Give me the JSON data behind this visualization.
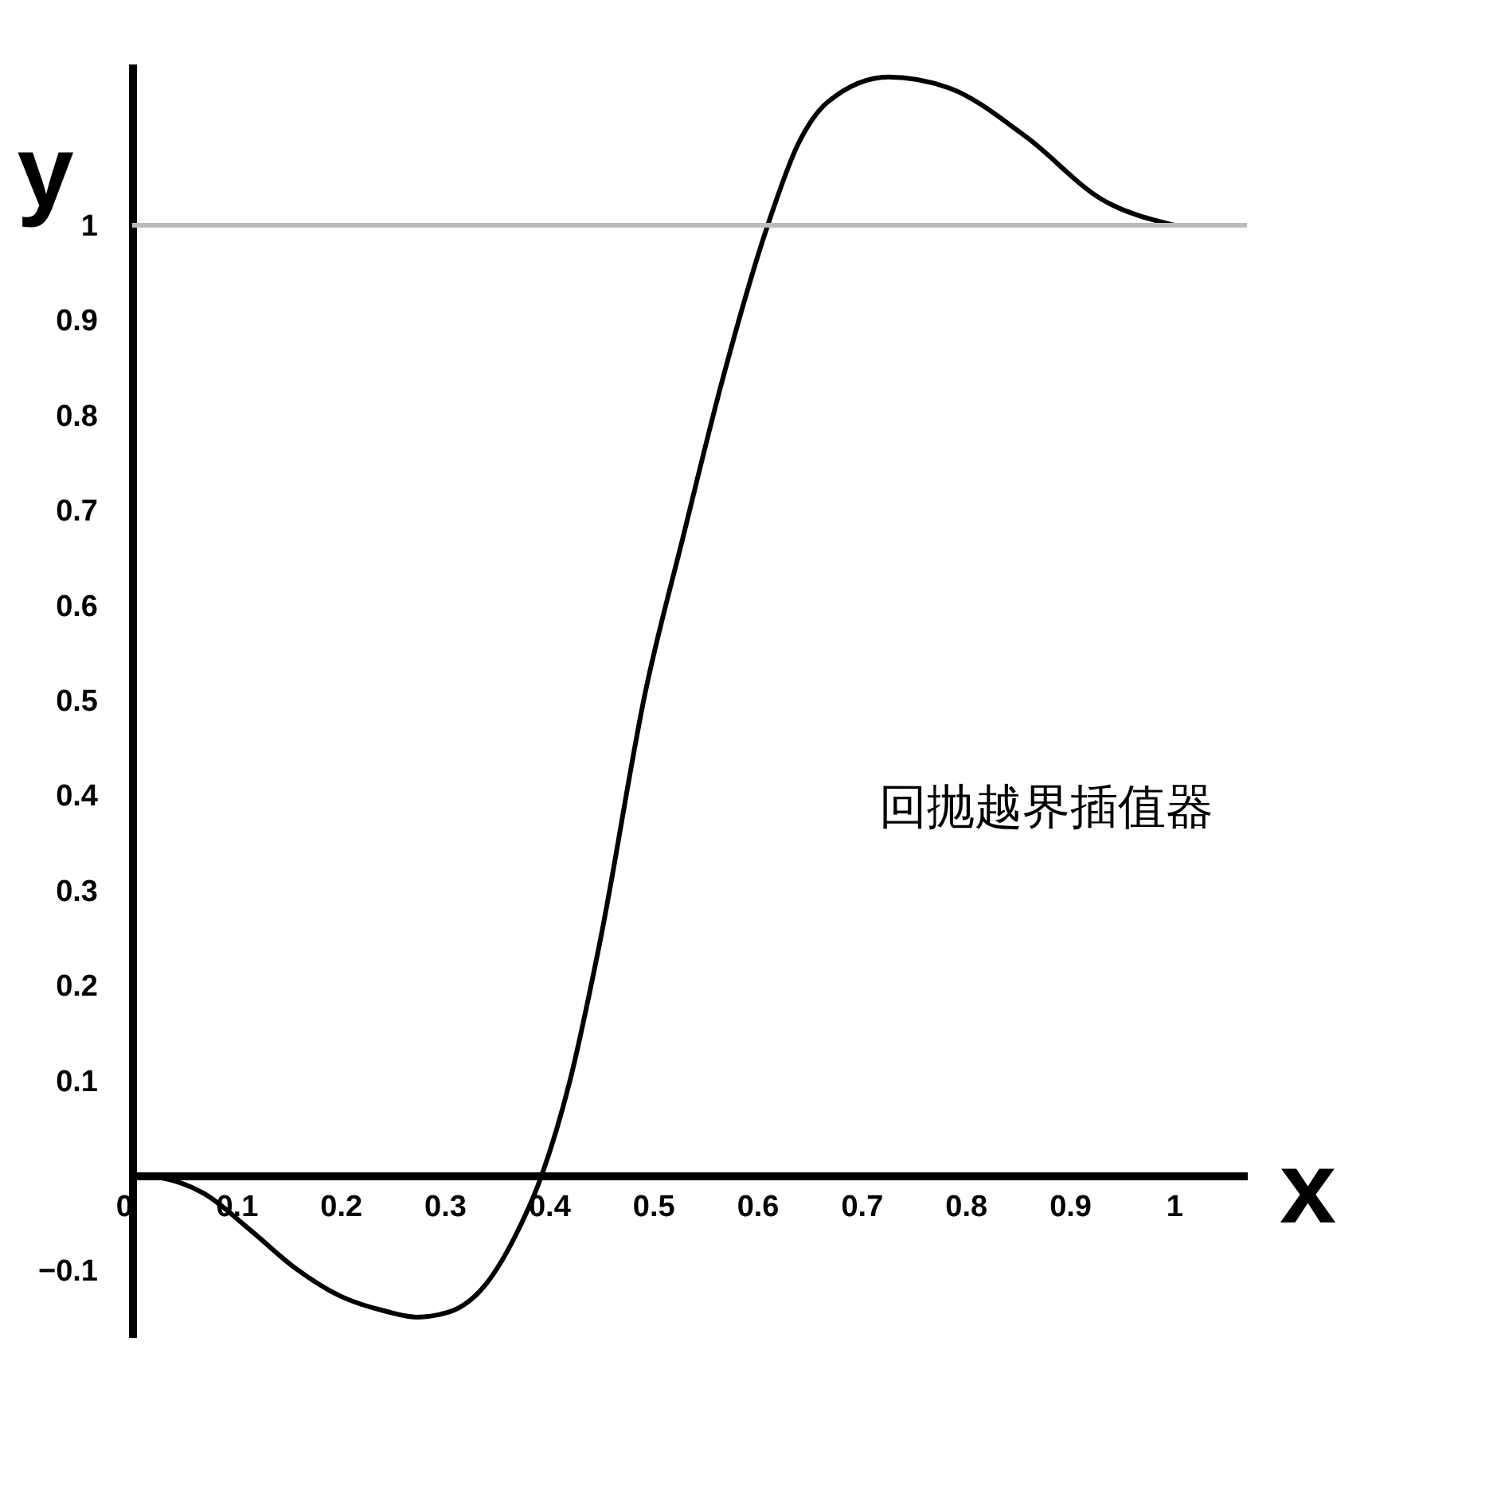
{
  "chart_data": {
    "type": "line",
    "xlabel": "x",
    "ylabel": "y",
    "x": [
      0,
      0.025,
      0.069,
      0.113,
      0.156,
      0.2,
      0.244,
      0.273,
      0.303,
      0.339,
      0.368,
      0.393,
      0.42,
      0.449,
      0.493,
      0.529,
      0.566,
      0.61,
      0.639,
      0.668,
      0.726,
      0.785,
      0.858,
      0.931,
      1
    ],
    "series": [
      {
        "color": "#000000",
        "values": [
          0,
          -0.002,
          -0.019,
          -0.057,
          -0.097,
          -0.127,
          -0.143,
          -0.149,
          -0.144,
          -0.115,
          -0.063,
          0,
          0.099,
          0.246,
          0.511,
          0.673,
          0.835,
          1,
          1.085,
          1.13,
          1.156,
          1.144,
          1.093,
          1.027,
          1
        ]
      }
    ],
    "xlim": [
      0,
      1.07
    ],
    "ylim": [
      -0.17,
      1.17
    ],
    "xticks": [
      0,
      0.1,
      0.2,
      0.3,
      0.4,
      0.5,
      0.6,
      0.7,
      0.8,
      0.9,
      1
    ],
    "yticks": [
      -0.1,
      0.1,
      0.2,
      0.3,
      0.4,
      0.5,
      0.6,
      0.7,
      0.8,
      0.9,
      1
    ],
    "ref_lines": [
      {
        "axis": "y",
        "value": 1,
        "color": "#bbbbbb"
      }
    ],
    "annotations": [
      "回抛越界插值器"
    ],
    "grid": false,
    "marker": "none",
    "line_style": "solid"
  }
}
